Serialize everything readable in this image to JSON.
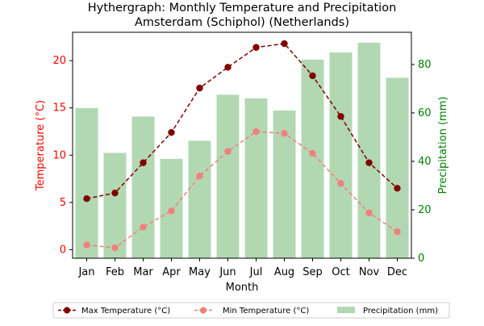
{
  "chart_data": {
    "type": "bar+line",
    "title_line1": "Hythergraph: Monthly Temperature and Precipitation",
    "title_line2": "Amsterdam (Schiphol) (Netherlands)",
    "xlabel": "Month",
    "ylabel_left": "Temperature (°C)",
    "ylabel_right": "Precipitation (mm)",
    "categories": [
      "Jan",
      "Feb",
      "Mar",
      "Apr",
      "May",
      "Jun",
      "Jul",
      "Aug",
      "Sep",
      "Oct",
      "Nov",
      "Dec"
    ],
    "y_left_lim": [
      -0.9,
      23.0
    ],
    "y_left_ticks": [
      0,
      5,
      10,
      15,
      20
    ],
    "y_right_lim": [
      0,
      93.3
    ],
    "y_right_ticks": [
      0,
      20,
      40,
      60,
      80
    ],
    "grid": false,
    "legend_position": "bottom-center",
    "series": [
      {
        "name": "Max Temperature (°C)",
        "type": "line",
        "axis": "left",
        "color": "#800000",
        "values": [
          5.4,
          6.0,
          9.2,
          12.4,
          17.1,
          19.3,
          21.4,
          21.8,
          18.4,
          14.1,
          9.2,
          6.5
        ]
      },
      {
        "name": "Min Temperature (°C)",
        "type": "line",
        "axis": "left",
        "color": "#F08080",
        "values": [
          0.5,
          0.2,
          2.4,
          4.1,
          7.8,
          10.4,
          12.5,
          12.3,
          10.2,
          7.0,
          3.9,
          1.9
        ]
      },
      {
        "name": "Precipitation (mm)",
        "type": "bar",
        "axis": "right",
        "color": "#B2D8B2",
        "values": [
          62,
          43.5,
          58.5,
          41,
          48.5,
          67.5,
          66,
          61,
          82,
          85,
          89,
          74.5
        ]
      }
    ],
    "colors": {
      "left_axis_label": "#FF0000",
      "right_axis_label": "#008000"
    }
  }
}
